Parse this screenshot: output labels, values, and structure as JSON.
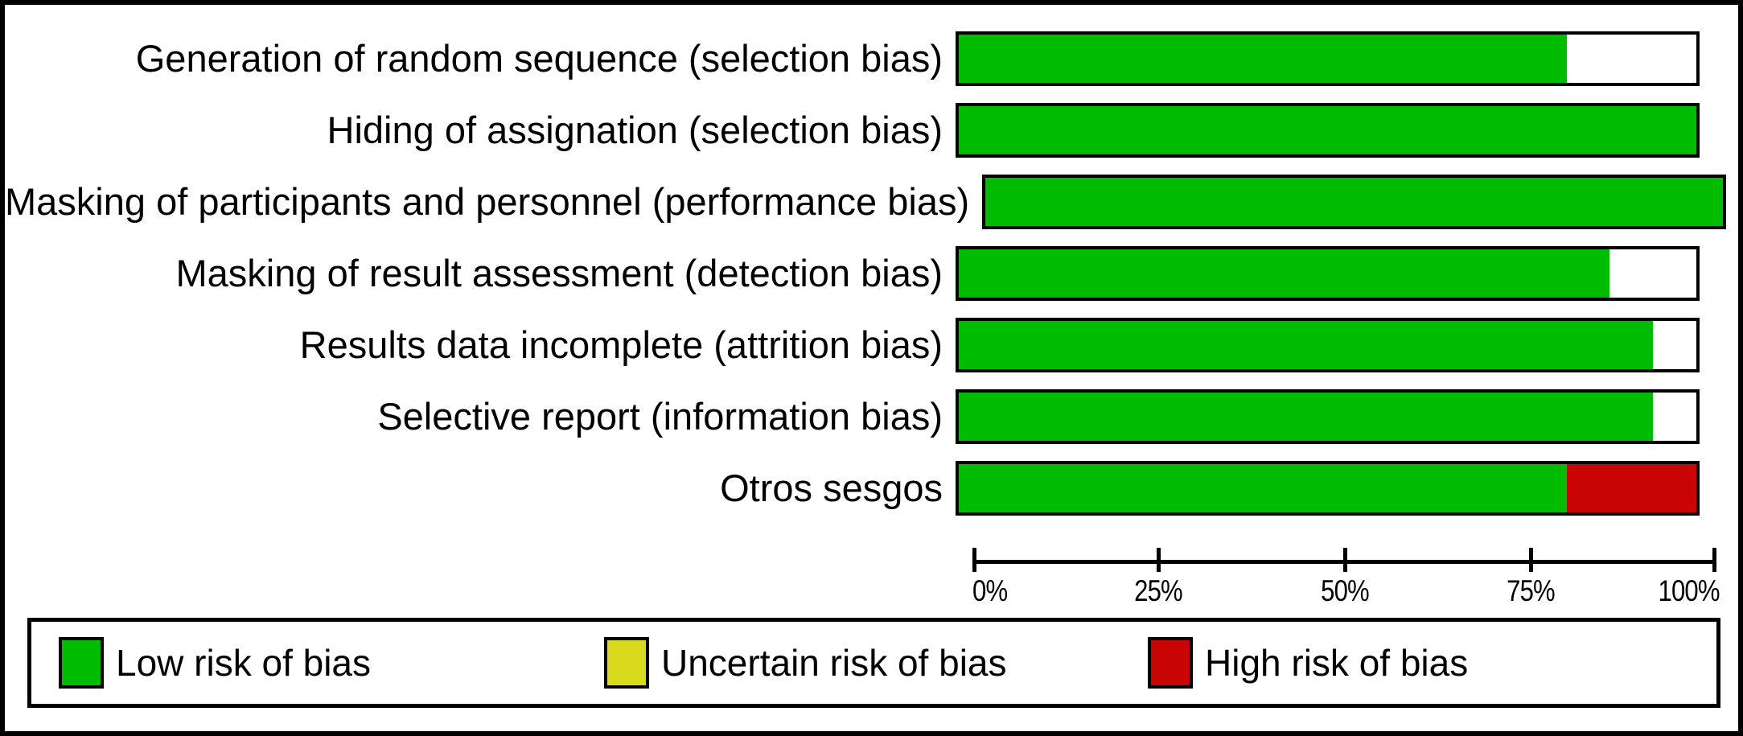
{
  "colors": {
    "low_risk": "#00BC00",
    "uncertain_risk": "#D9DA1D",
    "high_risk": "#C80404",
    "border": "#000000",
    "background": "#FFFFFF"
  },
  "chart_data": {
    "type": "bar",
    "subtype": "horizontal_stacked",
    "categories": [
      "Generation of random sequence (selection bias)",
      "Hiding of assignation (selection bias)",
      "Masking of participants and personnel (performance bias)",
      "Masking of result assessment (detection bias)",
      "Results data incomplete (attrition bias)",
      "Selective report (information bias)",
      "Otros sesgos"
    ],
    "series": [
      {
        "name": "Low risk of bias",
        "color_key": "low_risk",
        "values": [
          82.4,
          100,
          100,
          88.2,
          94.1,
          94.1,
          82.4
        ]
      },
      {
        "name": "Uncertain risk of bias",
        "color_key": "uncertain_risk",
        "values": [
          0,
          0,
          0,
          0,
          0,
          0,
          0
        ]
      },
      {
        "name": "High risk of bias",
        "color_key": "high_risk",
        "values": [
          0,
          0,
          0,
          0,
          0,
          0,
          17.6
        ]
      }
    ],
    "x_ticks": [
      "0%",
      "25%",
      "50%",
      "75%",
      "100%"
    ],
    "xlim": [
      0,
      100
    ],
    "title": "",
    "xlabel": "",
    "ylabel": "",
    "grid": false,
    "legend_position": "bottom",
    "note": "Unfilled remainder of each bar is blank white inside a black-bordered track"
  },
  "legend": {
    "items": [
      {
        "label": "Low risk of bias",
        "color_key": "low_risk"
      },
      {
        "label": "Uncertain risk of bias",
        "color_key": "uncertain_risk"
      },
      {
        "label": "High risk of bias",
        "color_key": "high_risk"
      }
    ]
  }
}
